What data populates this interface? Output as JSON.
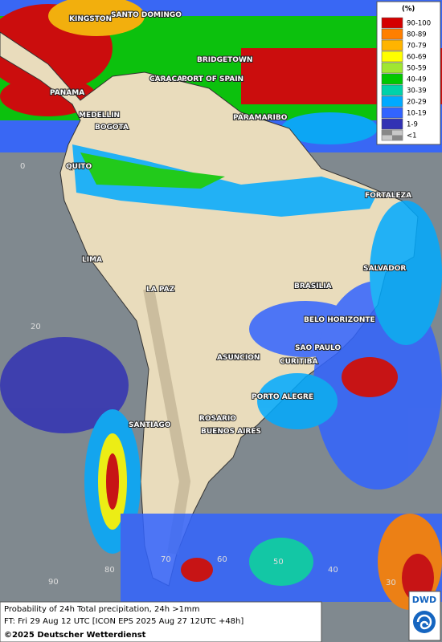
{
  "map": {
    "cities": [
      "KINGSTON",
      "SANTO DOMINGO",
      "BRIDGETOWN",
      "PANAMA",
      "CARACAS",
      "PORT OF SPAIN",
      "PARAMARIBO",
      "MEDELLIN",
      "BOGOTA",
      "QUITO",
      "FORTALEZA",
      "LIMA",
      "SALVADOR",
      "BRASILIA",
      "LA PAZ",
      "BELO HORIZONTE",
      "SAO PAULO",
      "ASUNCION",
      "CURITIBA",
      "PORTO ALEGRE",
      "ROSARIO",
      "SANTIAGO",
      "BUENOS AIRES"
    ],
    "grid_labels": [
      "0",
      "20",
      "90",
      "80",
      "70",
      "60",
      "50",
      "40",
      "30"
    ],
    "legend": {
      "title": "(%)",
      "entries": [
        {
          "label": "90-100",
          "color": "#d40000"
        },
        {
          "label": "80-89",
          "color": "#ff7f00"
        },
        {
          "label": "70-79",
          "color": "#ffb400"
        },
        {
          "label": "60-69",
          "color": "#ffff00"
        },
        {
          "label": "50-59",
          "color": "#a0e632"
        },
        {
          "label": "40-49",
          "color": "#00c800"
        },
        {
          "label": "30-39",
          "color": "#00d2aa"
        },
        {
          "label": "20-29",
          "color": "#00aaff"
        },
        {
          "label": "10-19",
          "color": "#3264ff"
        },
        {
          "label": "1-9",
          "color": "#3232b4"
        },
        {
          "label": "<1",
          "color": "#c8c8c8"
        }
      ]
    },
    "footer": {
      "line1": "Probability of 24h Total precipitation, 24h >1mm",
      "line2": "FT: Fri 29 Aug 12 UTC [ICON EPS 2025 Aug 27 12UTC +48h]",
      "copyright": "©2025 Deutscher Wetterdienst"
    },
    "logo": "DWD"
  }
}
